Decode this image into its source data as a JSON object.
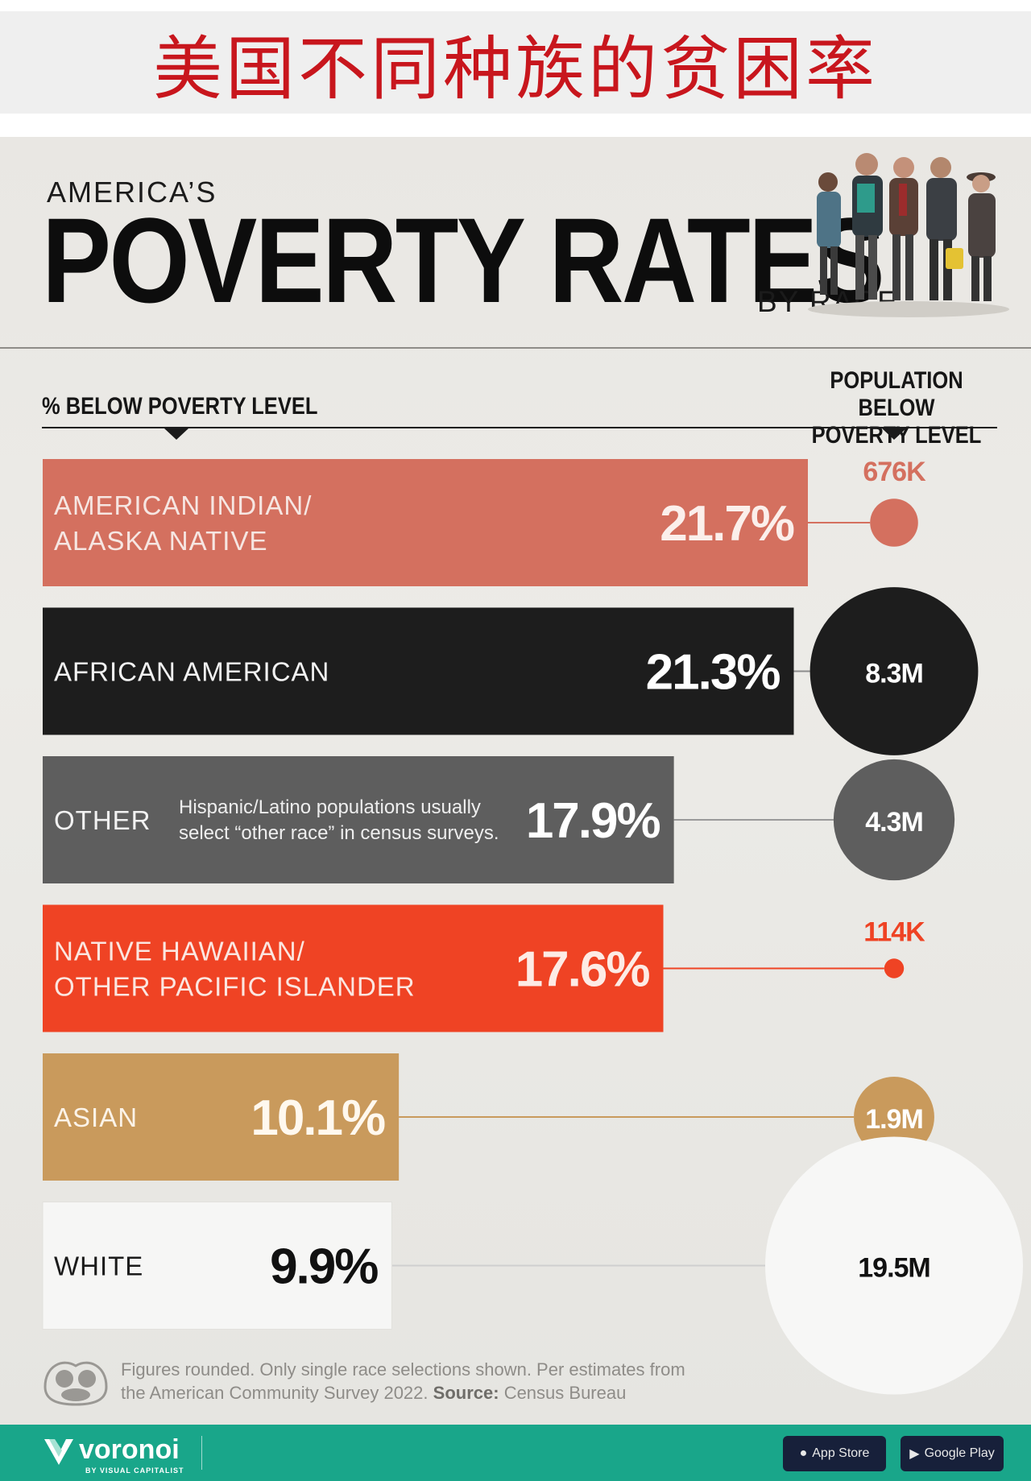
{
  "banner": {
    "title": "美国不同种族的贫困率"
  },
  "header": {
    "supertitle": "AMERICA’S",
    "title": "POVERTY RATES",
    "subtitle": "BY RACE"
  },
  "labels": {
    "left_axis": "% BELOW POVERTY LEVEL",
    "right_axis_line1": "POPULATION BELOW",
    "right_axis_line2": "POVERTY LEVEL"
  },
  "colors": {
    "american_indian": "#d4705f",
    "african_american": "#1d1d1d",
    "other": "#5e5e5e",
    "native_hawaiian": "#ef4324",
    "asian": "#c99a5c",
    "white": "#f6f6f5",
    "footer": "#19a68a",
    "banner_text": "#c8161d"
  },
  "chart_data": {
    "type": "bar",
    "orientation": "horizontal",
    "x_axis_label": "% BELOW POVERTY LEVEL",
    "secondary_label": "POPULATION BELOW POVERTY LEVEL",
    "categories": [
      [
        "AMERICAN INDIAN/",
        "ALASKA NATIVE"
      ],
      [
        "AFRICAN AMERICAN"
      ],
      [
        "OTHER"
      ],
      [
        "NATIVE HAWAIIAN/",
        "OTHER PACIFIC ISLANDER"
      ],
      [
        "ASIAN"
      ],
      [
        "WHITE"
      ]
    ],
    "series": [
      {
        "values": [
          21.7,
          21.3,
          17.9,
          17.6,
          10.1,
          9.9
        ],
        "value_labels": [
          "21.7%",
          "21.3%",
          "17.9%",
          "17.6%",
          "10.1%",
          "9.9%"
        ]
      }
    ],
    "population_millions": [
      0.676,
      8.3,
      4.3,
      0.114,
      1.9,
      19.5
    ],
    "population_labels": [
      "676K",
      "8.3M",
      "4.3M",
      "114K",
      "1.9M",
      "19.5M"
    ],
    "annotations": [
      {
        "category_index": 2,
        "lines": [
          "Hispanic/Latino populations usually",
          "select “other race” in census surveys."
        ]
      }
    ]
  },
  "footnote": {
    "line1": "Figures rounded. Only single race selections shown. Per estimates from",
    "line2_prefix": "the American Community Survey 2022.",
    "source_label": "Source:",
    "source_value": "Census Bureau"
  },
  "footer": {
    "brand": "voronoi",
    "brand_sub": "BY VISUAL CAPITALIST",
    "app_store": "App Store",
    "google_play": "Google Play"
  }
}
